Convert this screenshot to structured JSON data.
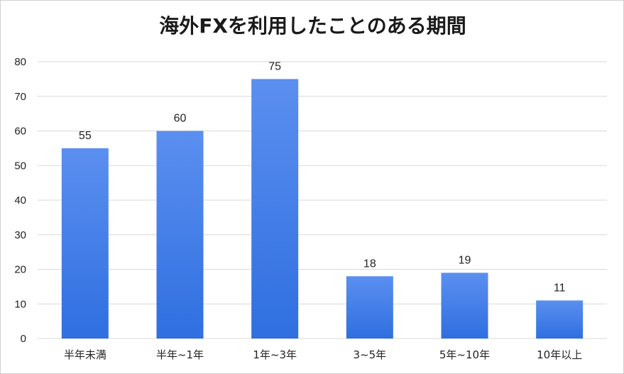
{
  "chart_data": {
    "type": "bar",
    "title": "海外FXを利用したことのある期間",
    "xlabel": "",
    "ylabel": "",
    "categories": [
      "半年未満",
      "半年~1年",
      "1年~3年",
      "3~5年",
      "5年~10年",
      "10年以上"
    ],
    "values": [
      55,
      60,
      75,
      18,
      19,
      11
    ],
    "ylim": [
      0,
      80
    ],
    "yticks": [
      0,
      10,
      20,
      30,
      40,
      50,
      60,
      70,
      80
    ],
    "grid": true,
    "bar_color_top": "#5b8ff0",
    "bar_color_bottom": "#2f6fe0",
    "grid_color": "#d9d9d9"
  }
}
